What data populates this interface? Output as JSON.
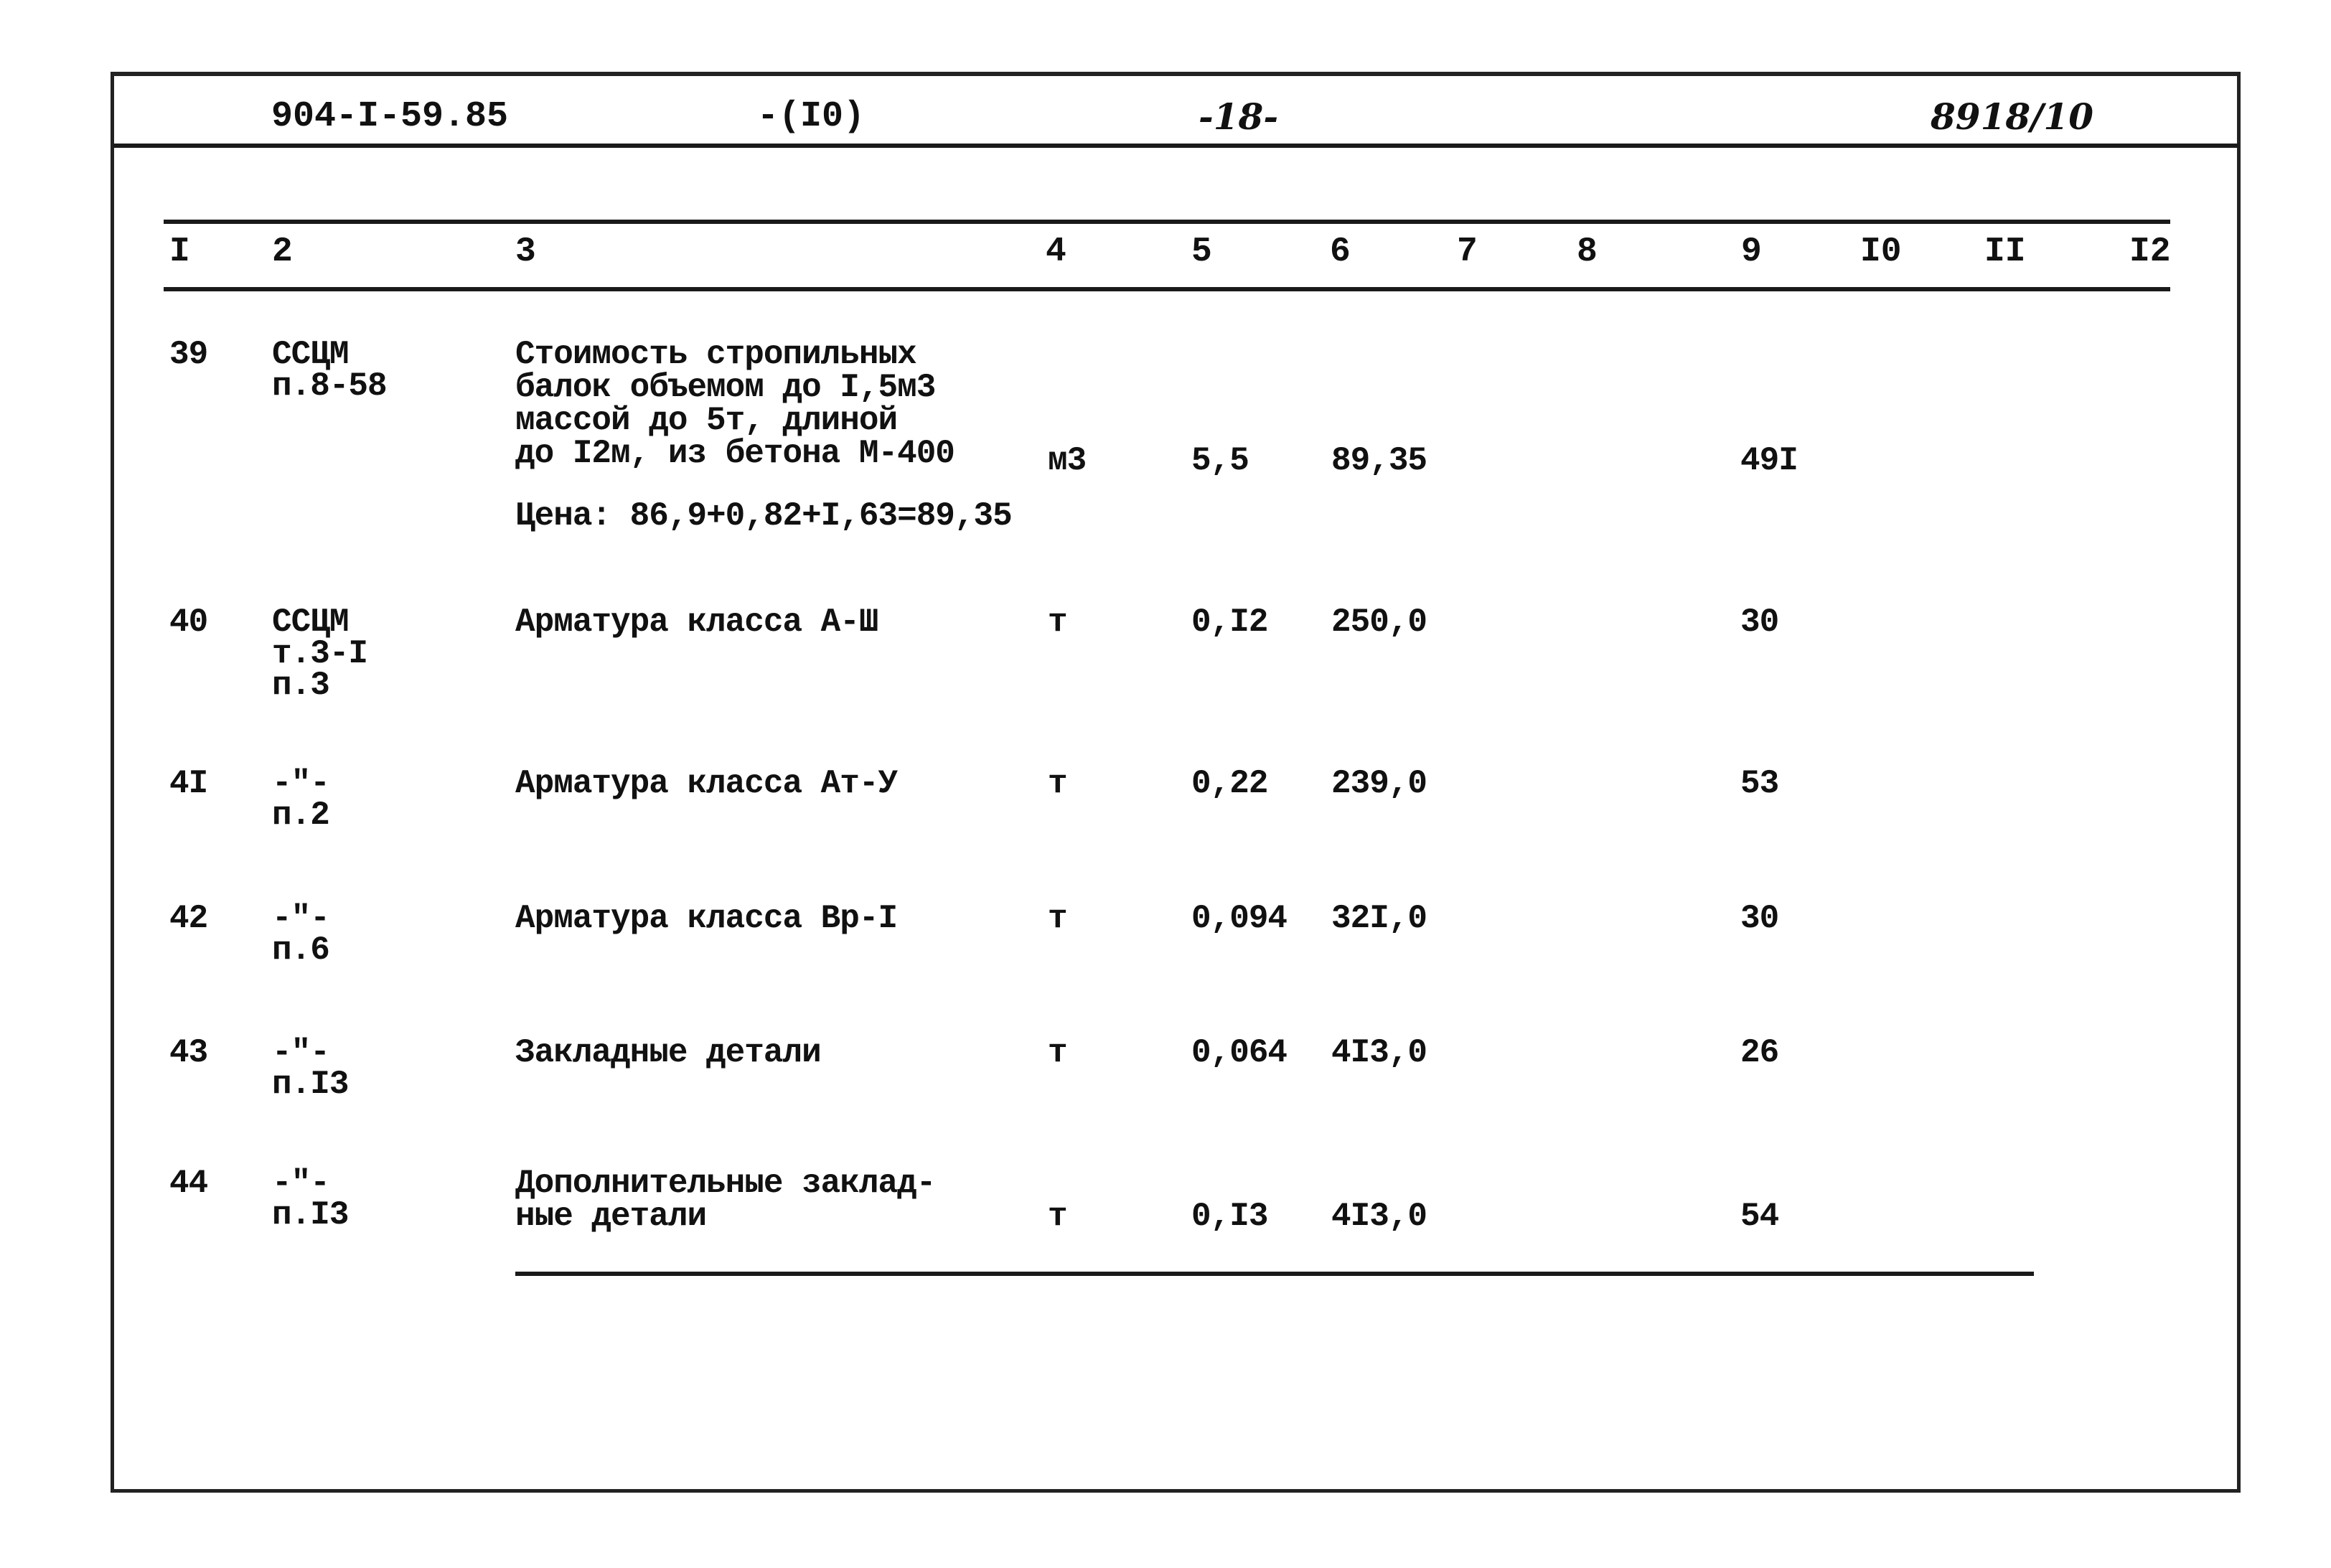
{
  "header": {
    "doc_code": "904-I-59.85",
    "section": "-(I0)",
    "page": "-18-",
    "inventory": "8918/10"
  },
  "columns": [
    "I",
    "2",
    "3",
    "4",
    "5",
    "6",
    "7",
    "8",
    "9",
    "I0",
    "II",
    "I2"
  ],
  "rows": [
    {
      "no": "39",
      "ref": [
        "ССЦМ",
        "п.8-58"
      ],
      "name": [
        "Стоимость стропильных",
        "балок объемом до I,5м3",
        "массой до 5т, длиной",
        "до I2м, из бетона М-400"
      ],
      "unit": "м3",
      "qty": "5,5",
      "price": "89,35",
      "total": "49I",
      "note": "Цена: 86,9+0,82+I,63=89,35"
    },
    {
      "no": "40",
      "ref": [
        "ССЦМ",
        "т.3-I",
        "п.3"
      ],
      "name": [
        "Арматура класса А-Ш"
      ],
      "unit": "т",
      "qty": "0,I2",
      "price": "250,0",
      "total": "30"
    },
    {
      "no": "4I",
      "ref": [
        "-\"-",
        "п.2"
      ],
      "name": [
        "Арматура класса Ат-У"
      ],
      "unit": "т",
      "qty": "0,22",
      "price": "239,0",
      "total": "53"
    },
    {
      "no": "42",
      "ref": [
        "-\"-",
        "п.6"
      ],
      "name": [
        "Арматура класса Вр-I"
      ],
      "unit": "т",
      "qty": "0,094",
      "price": "32I,0",
      "total": "30"
    },
    {
      "no": "43",
      "ref": [
        "-\"-",
        "п.I3"
      ],
      "name": [
        "Закладные детали"
      ],
      "unit": "т",
      "qty": "0,064",
      "price": "4I3,0",
      "total": "26"
    },
    {
      "no": "44",
      "ref": [
        "-\"-",
        "п.I3"
      ],
      "name": [
        "Дополнительные заклад-",
        "ные детали"
      ],
      "unit": "т",
      "qty": "0,I3",
      "price": "4I3,0",
      "total": "54"
    }
  ]
}
